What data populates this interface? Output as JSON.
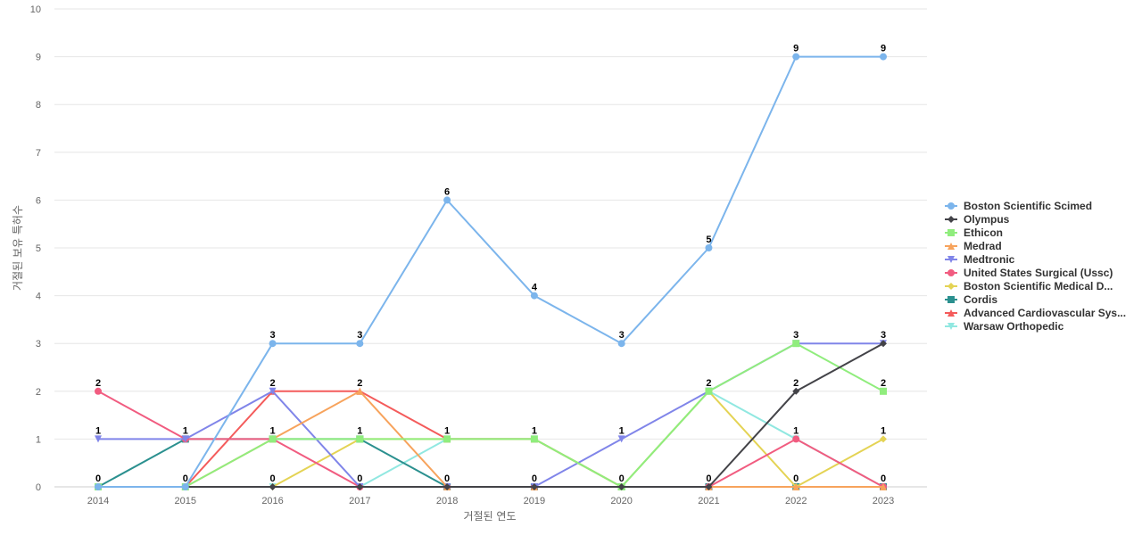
{
  "chart_data": {
    "type": "line",
    "title": "",
    "xlabel": "거절된 연도",
    "ylabel": "거절된 보유 특허수",
    "ylim": [
      0,
      10
    ],
    "yticks": [
      0,
      1,
      2,
      3,
      4,
      5,
      6,
      7,
      8,
      9,
      10
    ],
    "categories": [
      "2014",
      "2015",
      "2016",
      "2017",
      "2018",
      "2019",
      "2020",
      "2021",
      "2022",
      "2023"
    ],
    "grid": true,
    "legend_position": "right",
    "series": [
      {
        "name": "Boston Scientific Scimed",
        "color": "#7cb5ec",
        "marker": "circle",
        "values": [
          0,
          0,
          3,
          3,
          6,
          4,
          3,
          5,
          9,
          9
        ],
        "labeled": true
      },
      {
        "name": "Olympus",
        "color": "#434348",
        "marker": "diamond",
        "values": [
          0,
          0,
          0,
          0,
          0,
          0,
          0,
          0,
          2,
          3
        ],
        "labeled": false
      },
      {
        "name": "Ethicon",
        "color": "#90ed7d",
        "marker": "square",
        "values": [
          0,
          0,
          1,
          1,
          1,
          1,
          0,
          2,
          3,
          2
        ],
        "labeled": false
      },
      {
        "name": "Medrad",
        "color": "#f7a35c",
        "marker": "triangle",
        "values": [
          0,
          0,
          1,
          2,
          0,
          0,
          0,
          0,
          0,
          0
        ],
        "labeled": false
      },
      {
        "name": "Medtronic",
        "color": "#8085e9",
        "marker": "triangle-down",
        "values": [
          1,
          1,
          2,
          0,
          0,
          0,
          1,
          2,
          3,
          3
        ],
        "labeled": false
      },
      {
        "name": "United States Surgical (Ussc)",
        "color": "#f15c80",
        "marker": "circle",
        "values": [
          2,
          1,
          1,
          0,
          0,
          0,
          0,
          0,
          1,
          0
        ],
        "labeled": false
      },
      {
        "name": "Boston Scientific Medical D...",
        "color": "#e4d354",
        "marker": "diamond",
        "values": [
          0,
          0,
          0,
          1,
          1,
          1,
          0,
          2,
          0,
          1
        ],
        "labeled": false
      },
      {
        "name": "Cordis",
        "color": "#2b908f",
        "marker": "square",
        "values": [
          0,
          1,
          1,
          1,
          0,
          0,
          0,
          0,
          0,
          0
        ],
        "labeled": false
      },
      {
        "name": "Advanced Cardiovascular Sys...",
        "color": "#f45b5b",
        "marker": "triangle",
        "values": [
          0,
          0,
          2,
          2,
          1,
          1,
          0,
          0,
          0,
          0
        ],
        "labeled": false
      },
      {
        "name": "Warsaw Orthopedic",
        "color": "#91e8e1",
        "marker": "triangle-down",
        "values": [
          0,
          0,
          0,
          0,
          1,
          1,
          0,
          2,
          1,
          0
        ],
        "labeled": false
      }
    ],
    "data_labels": [
      {
        "category": "2014",
        "upper": "2",
        "middle": "1",
        "lower": "0"
      },
      {
        "category": "2015",
        "middle": "1",
        "lower": "0"
      },
      {
        "category": "2016",
        "upper": "3",
        "middle2": "2",
        "middle": "1",
        "lower": "0"
      },
      {
        "category": "2017",
        "upper": "3",
        "middle2": "2",
        "middle": "1",
        "lower": "0"
      },
      {
        "category": "2018",
        "upper": "6",
        "middle": "1",
        "lower": "0"
      },
      {
        "category": "2019",
        "upper": "4",
        "middle": "1",
        "lower": "0"
      },
      {
        "category": "2020",
        "upper": "3",
        "middle": "1",
        "lower": "0"
      },
      {
        "category": "2021",
        "upper": "5",
        "middle2": "2",
        "lower": "0"
      },
      {
        "category": "2022",
        "upper": "9",
        "middle3": "3",
        "middle2": "2",
        "middle": "1",
        "lower": "0"
      },
      {
        "category": "2023",
        "upper": "9",
        "middle3": "3",
        "middle2": "2",
        "middle": "1",
        "lower": "0"
      }
    ]
  }
}
